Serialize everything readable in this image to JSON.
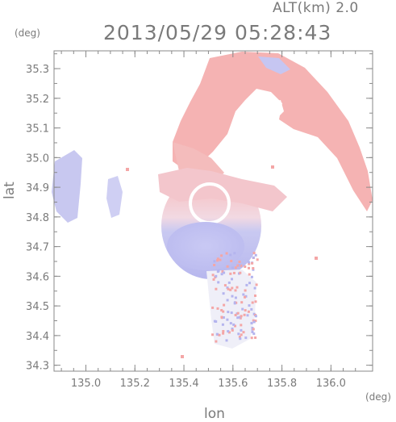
{
  "header": {
    "altitude": "ALT(km)  2.0",
    "datetime": "2013/05/29 05:28:43"
  },
  "axes": {
    "ylabel": "lat",
    "xlabel": "lon",
    "yunit": "(deg)",
    "xunit": "(deg)",
    "xlim": [
      134.87,
      136.17
    ],
    "ylim": [
      34.28,
      35.36
    ],
    "xticks": [
      135.0,
      135.2,
      135.4,
      135.6,
      135.8,
      136.0
    ],
    "yticks": [
      34.3,
      34.4,
      34.5,
      34.6,
      34.7,
      34.8,
      34.9,
      35.0,
      35.1,
      35.2,
      35.3
    ],
    "grid": false
  },
  "colors": {
    "frame": "#8a8a8a",
    "text": "#7a7a7a",
    "toward": "#f4a6a6",
    "away": "#b4b4ee"
  }
}
